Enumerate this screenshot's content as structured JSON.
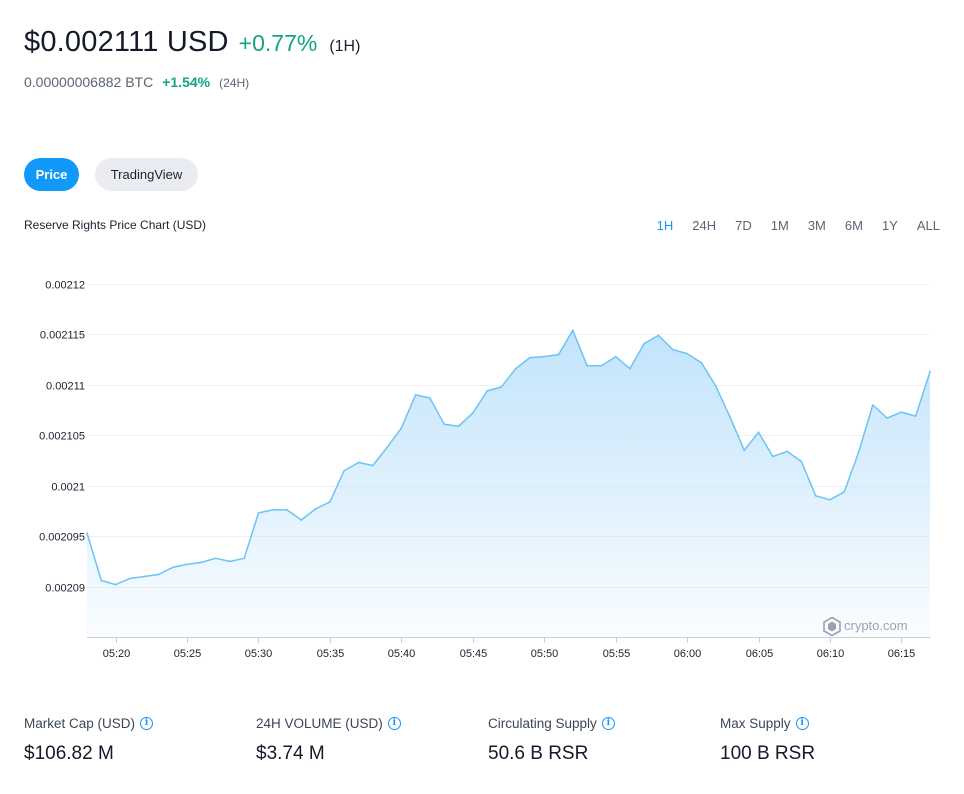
{
  "header": {
    "price": "$0.002111 USD",
    "change": "+0.77%",
    "period": "(1H)",
    "btc_price": "0.00000006882 BTC",
    "btc_change": "+1.54%",
    "btc_period": "(24H)"
  },
  "tabs": {
    "price_label": "Price",
    "tradingview_label": "TradingView"
  },
  "chart_title": "Reserve Rights Price Chart (USD)",
  "ranges": [
    "1H",
    "24H",
    "7D",
    "1M",
    "3M",
    "6M",
    "1Y",
    "ALL"
  ],
  "watermark": "crypto.com",
  "colors": {
    "accent": "#1199fa",
    "positive": "#13a483",
    "line": "#6cc4f5",
    "fill": "#cfe9fc"
  },
  "stats": [
    {
      "label": "Market Cap (USD)",
      "value": "$106.82 M"
    },
    {
      "label": "24H VOLUME (USD)",
      "value": "$3.74 M"
    },
    {
      "label": "Circulating Supply",
      "value": "50.6 B RSR"
    },
    {
      "label": "Max Supply",
      "value": "100 B RSR"
    }
  ],
  "chart_data": {
    "type": "area",
    "title": "Reserve Rights Price Chart (USD)",
    "y_ticks": [
      0.00209,
      0.002095,
      0.0021,
      0.002105,
      0.00211,
      0.002115,
      0.00212
    ],
    "y_tick_labels": [
      "0.00209",
      "0.002095",
      "0.0021",
      "0.002105",
      "0.00211",
      "0.002115",
      "0.00212"
    ],
    "ylim": [
      0.002085,
      0.00212
    ],
    "x_tick_labels": [
      "05:20",
      "05:25",
      "05:30",
      "05:35",
      "05:40",
      "05:45",
      "05:50",
      "05:55",
      "06:00",
      "06:05",
      "06:10",
      "06:15"
    ],
    "x_start": "05:18",
    "x_end": "06:17",
    "grid": true,
    "series": [
      {
        "x": [
          "05:18",
          "05:19",
          "05:20",
          "05:21",
          "05:22",
          "05:23",
          "05:24",
          "05:25",
          "05:26",
          "05:27",
          "05:28",
          "05:29",
          "05:30",
          "05:31",
          "05:32",
          "05:33",
          "05:34",
          "05:35",
          "05:36",
          "05:37",
          "05:38",
          "05:39",
          "05:40",
          "05:41",
          "05:42",
          "05:43",
          "05:44",
          "05:45",
          "05:46",
          "05:47",
          "05:48",
          "05:49",
          "05:50",
          "05:51",
          "05:52",
          "05:53",
          "05:54",
          "05:55",
          "05:56",
          "05:57",
          "05:58",
          "05:59",
          "06:00",
          "06:01",
          "06:02",
          "06:03",
          "06:04",
          "06:05",
          "06:06",
          "06:07",
          "06:08",
          "06:09",
          "06:10",
          "06:11",
          "06:12",
          "06:13",
          "06:14",
          "06:15",
          "06:16",
          "06:17"
        ],
        "values": [
          0.0020953,
          0.0020906,
          0.0020902,
          0.0020908,
          0.002091,
          0.0020912,
          0.0020919,
          0.0020922,
          0.0020924,
          0.0020928,
          0.0020925,
          0.0020928,
          0.0020973,
          0.0020976,
          0.0020976,
          0.0020966,
          0.0020977,
          0.0020984,
          0.0021015,
          0.0021023,
          0.002102,
          0.0021038,
          0.0021057,
          0.002109,
          0.0021087,
          0.0021061,
          0.0021059,
          0.0021072,
          0.0021094,
          0.0021098,
          0.0021116,
          0.0021127,
          0.0021128,
          0.002113,
          0.0021154,
          0.0021119,
          0.0021119,
          0.0021128,
          0.0021116,
          0.0021141,
          0.0021149,
          0.0021135,
          0.0021131,
          0.0021122,
          0.0021099,
          0.0021068,
          0.0021035,
          0.0021053,
          0.0021029,
          0.0021034,
          0.0021024,
          0.002099,
          0.0020986,
          0.0020994,
          0.0021033,
          0.002108,
          0.0021067,
          0.0021073,
          0.0021069,
          0.0021113
        ]
      }
    ]
  }
}
